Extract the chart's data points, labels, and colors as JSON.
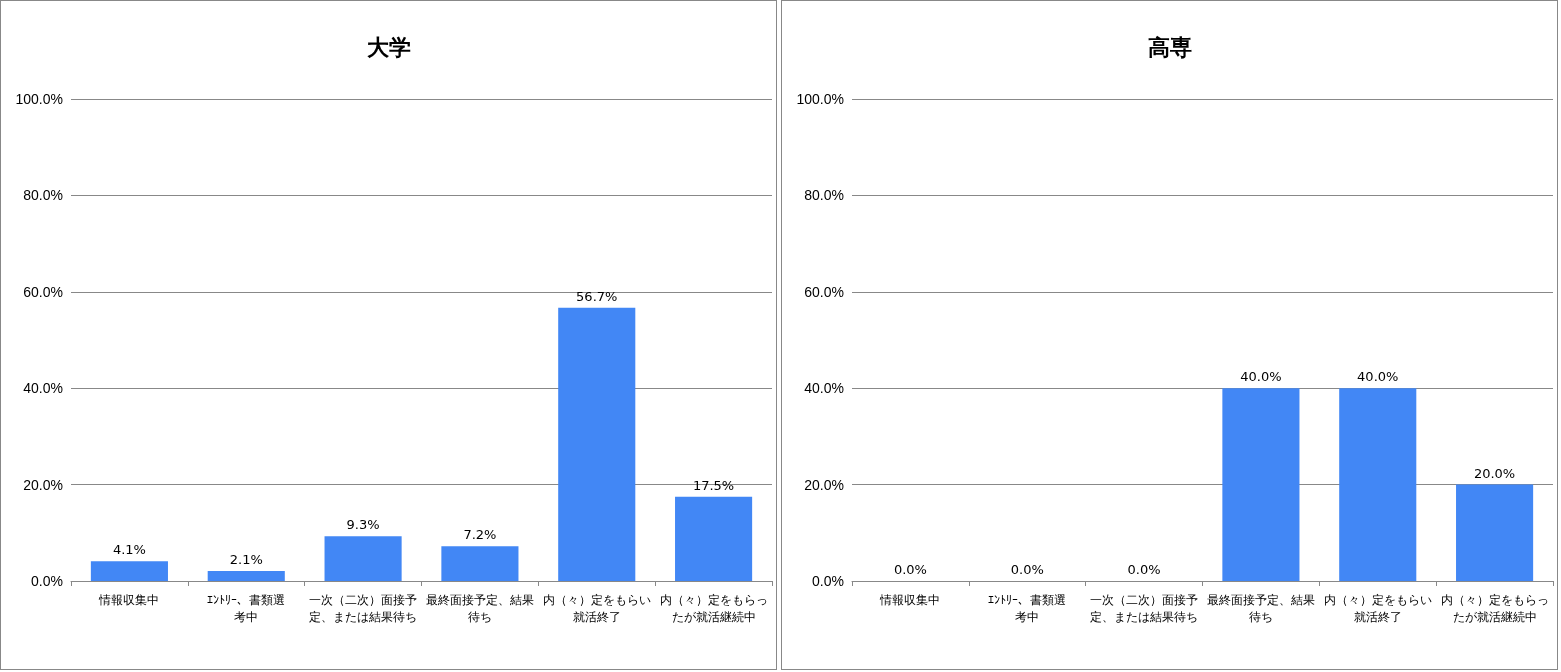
{
  "chart_data": [
    {
      "type": "bar",
      "title": "大学",
      "categories": [
        "情報収集中",
        "ｴﾝﾄﾘｰ、書類選考中",
        "一次（二次）面接予定、または結果待ち",
        "最終面接予定、結果待ち",
        "内（々）定をもらい就活終了",
        "内（々）定をもらったが就活継続中"
      ],
      "values": [
        4.1,
        2.1,
        9.3,
        7.2,
        56.7,
        17.5
      ],
      "value_labels": [
        "4.1%",
        "2.1%",
        "9.3%",
        "7.2%",
        "56.7%",
        "17.5%"
      ],
      "color": "#4287f5",
      "ylim": [
        0,
        100
      ],
      "yticks": [
        {
          "value": 0,
          "label": "0.0%"
        },
        {
          "value": 20,
          "label": "20.0%"
        },
        {
          "value": 40,
          "label": "40.0%"
        },
        {
          "value": 60,
          "label": "60.0%"
        },
        {
          "value": 80,
          "label": "80.0%"
        },
        {
          "value": 100,
          "label": "100.0%"
        }
      ],
      "grid": "y"
    },
    {
      "type": "bar",
      "title": "高専",
      "categories": [
        "情報収集中",
        "ｴﾝﾄﾘｰ、書類選考中",
        "一次（二次）面接予定、または結果待ち",
        "最終面接予定、結果待ち",
        "内（々）定をもらい就活終了",
        "内（々）定をもらったが就活継続中"
      ],
      "values": [
        0,
        0,
        0,
        40,
        40,
        20
      ],
      "value_labels": [
        "0.0%",
        "0.0%",
        "0.0%",
        "40.0%",
        "40.0%",
        "20.0%"
      ],
      "color": "#4287f5",
      "ylim": [
        0,
        100
      ],
      "yticks": [
        {
          "value": 0,
          "label": "0.0%"
        },
        {
          "value": 20,
          "label": "20.0%"
        },
        {
          "value": 40,
          "label": "40.0%"
        },
        {
          "value": 60,
          "label": "60.0%"
        },
        {
          "value": 80,
          "label": "80.0%"
        },
        {
          "value": 100,
          "label": "100.0%"
        }
      ],
      "grid": "y"
    }
  ]
}
